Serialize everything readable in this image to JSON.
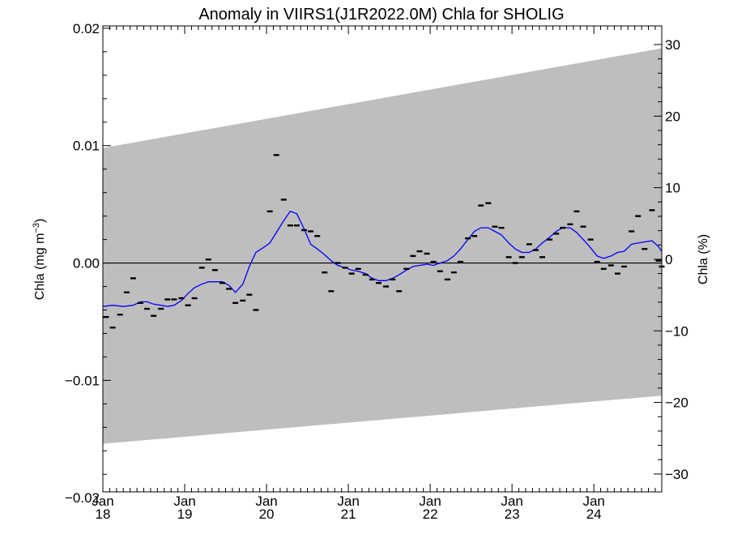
{
  "chart_data": {
    "type": "scatter",
    "title": "Anomaly in VIIRS1(J1R2022.0M) Chla for SHOLIG",
    "ylabel_left_main": "Chla (mg m",
    "ylabel_left_sup": "−3",
    "ylabel_left_end": ")",
    "ylabel_right": "Chla (%)",
    "xlim": [
      2018.0,
      2024.83
    ],
    "ylim": [
      -0.0195,
      0.0202
    ],
    "ylim_right": [
      -32.5,
      32.6
    ],
    "x_ticks": [
      {
        "x": 2018.0,
        "month": "Jan",
        "year": "18"
      },
      {
        "x": 2019.0,
        "month": "Jan",
        "year": "19"
      },
      {
        "x": 2020.0,
        "month": "Jan",
        "year": "20"
      },
      {
        "x": 2021.0,
        "month": "Jan",
        "year": "21"
      },
      {
        "x": 2022.0,
        "month": "Jan",
        "year": "22"
      },
      {
        "x": 2023.0,
        "month": "Jan",
        "year": "23"
      },
      {
        "x": 2024.0,
        "month": "Jan",
        "year": "24"
      }
    ],
    "y_ticks_left": [
      {
        "v": 0.02,
        "label": "0.02"
      },
      {
        "v": 0.01,
        "label": "0.01"
      },
      {
        "v": 0.0,
        "label": "0.00"
      },
      {
        "v": -0.01,
        "label": "−0.01"
      },
      {
        "v": -0.02,
        "label": "−0.02"
      }
    ],
    "y_ticks_right": [
      {
        "v": 30,
        "label": "30"
      },
      {
        "v": 20,
        "label": "20"
      },
      {
        "v": 10,
        "label": "10"
      },
      {
        "v": 0,
        "label": "0"
      },
      {
        "v": -10,
        "label": "−10"
      },
      {
        "v": -20,
        "label": "−20"
      },
      {
        "v": -30,
        "label": "−30"
      }
    ],
    "envelope": {
      "x": [
        2018.0,
        2024.83
      ],
      "upper": [
        0.0098,
        0.0183
      ],
      "lower": [
        -0.0154,
        -0.0113
      ],
      "color": "#bebebe"
    },
    "zero_line": 0.0,
    "monthly_anomaly": {
      "color": "#000000",
      "points": [
        [
          2018.04,
          -0.0046
        ],
        [
          2018.12,
          -0.0055
        ],
        [
          2018.21,
          -0.0044
        ],
        [
          2018.29,
          -0.0025
        ],
        [
          2018.37,
          -0.0013
        ],
        [
          2018.46,
          -0.0034
        ],
        [
          2018.54,
          -0.0039
        ],
        [
          2018.62,
          -0.0045
        ],
        [
          2018.71,
          -0.0039
        ],
        [
          2018.79,
          -0.0031
        ],
        [
          2018.87,
          -0.0031
        ],
        [
          2018.96,
          -0.003
        ],
        [
          2019.04,
          -0.0036
        ],
        [
          2019.12,
          -0.003
        ],
        [
          2019.21,
          -0.0004
        ],
        [
          2019.29,
          0.0003
        ],
        [
          2019.37,
          -0.0006
        ],
        [
          2019.46,
          -0.0017
        ],
        [
          2019.54,
          -0.0022
        ],
        [
          2019.62,
          -0.0034
        ],
        [
          2019.71,
          -0.0032
        ],
        [
          2019.79,
          -0.0027
        ],
        [
          2019.87,
          -0.004
        ],
        [
          2020.04,
          0.0044
        ],
        [
          2020.12,
          0.0092
        ],
        [
          2020.21,
          0.0054
        ],
        [
          2020.29,
          0.0032
        ],
        [
          2020.37,
          0.0032
        ],
        [
          2020.46,
          0.0028
        ],
        [
          2020.54,
          0.0027
        ],
        [
          2020.62,
          0.0023
        ],
        [
          2020.71,
          -0.0008
        ],
        [
          2020.79,
          -0.0024
        ],
        [
          2020.87,
          0.0
        ],
        [
          2020.96,
          -0.0004
        ],
        [
          2021.04,
          -0.0009
        ],
        [
          2021.12,
          -0.0005
        ],
        [
          2021.21,
          -0.001
        ],
        [
          2021.29,
          -0.0014
        ],
        [
          2021.37,
          -0.0017
        ],
        [
          2021.46,
          -0.002
        ],
        [
          2021.54,
          -0.0014
        ],
        [
          2021.62,
          -0.0024
        ],
        [
          2021.71,
          -0.0005
        ],
        [
          2021.79,
          0.0006
        ],
        [
          2021.87,
          0.001
        ],
        [
          2021.96,
          0.0008
        ],
        [
          2022.04,
          0.0001
        ],
        [
          2022.12,
          -0.0007
        ],
        [
          2022.21,
          -0.0014
        ],
        [
          2022.29,
          -0.0008
        ],
        [
          2022.37,
          0.0001
        ],
        [
          2022.46,
          0.0021
        ],
        [
          2022.54,
          0.0023
        ],
        [
          2022.62,
          0.0049
        ],
        [
          2022.71,
          0.0051
        ],
        [
          2022.79,
          0.0031
        ],
        [
          2022.87,
          0.003
        ],
        [
          2022.96,
          0.0005
        ],
        [
          2023.04,
          0.0
        ],
        [
          2023.12,
          0.0005
        ],
        [
          2023.21,
          0.0016
        ],
        [
          2023.29,
          0.0011
        ],
        [
          2023.37,
          0.0005
        ],
        [
          2023.46,
          0.002
        ],
        [
          2023.54,
          0.0025
        ],
        [
          2023.62,
          0.003
        ],
        [
          2023.71,
          0.0033
        ],
        [
          2023.79,
          0.0044
        ],
        [
          2023.87,
          0.0031
        ],
        [
          2023.96,
          0.002
        ],
        [
          2024.04,
          0.0001
        ],
        [
          2024.12,
          -0.0005
        ],
        [
          2024.21,
          -0.0002
        ],
        [
          2024.29,
          -0.0009
        ],
        [
          2024.37,
          -0.0003
        ],
        [
          2024.46,
          0.0027
        ],
        [
          2024.54,
          0.004
        ],
        [
          2024.62,
          0.0012
        ],
        [
          2024.71,
          0.0045
        ],
        [
          2024.79,
          0.0002
        ],
        [
          2024.83,
          -0.0003
        ]
      ]
    },
    "smoothed_anomaly": {
      "color": "#0000ff",
      "points": [
        [
          2018.0,
          -0.0037
        ],
        [
          2018.12,
          -0.0036
        ],
        [
          2018.25,
          -0.0037
        ],
        [
          2018.37,
          -0.0036
        ],
        [
          2018.46,
          -0.0033
        ],
        [
          2018.54,
          -0.0033
        ],
        [
          2018.62,
          -0.0035
        ],
        [
          2018.71,
          -0.0036
        ],
        [
          2018.79,
          -0.0037
        ],
        [
          2018.87,
          -0.0036
        ],
        [
          2018.96,
          -0.0032
        ],
        [
          2019.04,
          -0.0026
        ],
        [
          2019.12,
          -0.0021
        ],
        [
          2019.21,
          -0.0018
        ],
        [
          2019.29,
          -0.0016
        ],
        [
          2019.37,
          -0.0016
        ],
        [
          2019.46,
          -0.0016
        ],
        [
          2019.54,
          -0.0019
        ],
        [
          2019.62,
          -0.0025
        ],
        [
          2019.71,
          -0.0018
        ],
        [
          2019.79,
          -0.0003
        ],
        [
          2019.87,
          0.0009
        ],
        [
          2019.96,
          0.0013
        ],
        [
          2020.04,
          0.0017
        ],
        [
          2020.12,
          0.0026
        ],
        [
          2020.21,
          0.0036
        ],
        [
          2020.29,
          0.0044
        ],
        [
          2020.37,
          0.0042
        ],
        [
          2020.46,
          0.0029
        ],
        [
          2020.54,
          0.0016
        ],
        [
          2020.62,
          0.0012
        ],
        [
          2020.71,
          0.0007
        ],
        [
          2020.79,
          0.0002
        ],
        [
          2020.87,
          -0.0002
        ],
        [
          2020.96,
          -0.0004
        ],
        [
          2021.04,
          -0.0006
        ],
        [
          2021.12,
          -0.0007
        ],
        [
          2021.21,
          -0.0009
        ],
        [
          2021.29,
          -0.0013
        ],
        [
          2021.37,
          -0.0015
        ],
        [
          2021.46,
          -0.0015
        ],
        [
          2021.54,
          -0.0013
        ],
        [
          2021.62,
          -0.001
        ],
        [
          2021.71,
          -0.0006
        ],
        [
          2021.79,
          -0.0003
        ],
        [
          2021.87,
          -0.0002
        ],
        [
          2021.96,
          -0.0001
        ],
        [
          2022.04,
          -0.0002
        ],
        [
          2022.12,
          0.0
        ],
        [
          2022.21,
          0.0002
        ],
        [
          2022.29,
          0.0006
        ],
        [
          2022.37,
          0.0012
        ],
        [
          2022.46,
          0.002
        ],
        [
          2022.54,
          0.0027
        ],
        [
          2022.62,
          0.003
        ],
        [
          2022.71,
          0.003
        ],
        [
          2022.79,
          0.0027
        ],
        [
          2022.87,
          0.0024
        ],
        [
          2022.96,
          0.0017
        ],
        [
          2023.04,
          0.0012
        ],
        [
          2023.12,
          0.0009
        ],
        [
          2023.21,
          0.0009
        ],
        [
          2023.29,
          0.0012
        ],
        [
          2023.37,
          0.0017
        ],
        [
          2023.46,
          0.0022
        ],
        [
          2023.54,
          0.0027
        ],
        [
          2023.62,
          0.003
        ],
        [
          2023.71,
          0.003
        ],
        [
          2023.79,
          0.0026
        ],
        [
          2023.87,
          0.002
        ],
        [
          2023.96,
          0.0013
        ],
        [
          2024.04,
          0.0006
        ],
        [
          2024.12,
          0.0004
        ],
        [
          2024.21,
          0.0006
        ],
        [
          2024.29,
          0.0009
        ],
        [
          2024.37,
          0.001
        ],
        [
          2024.46,
          0.0016
        ],
        [
          2024.54,
          0.0017
        ],
        [
          2024.62,
          0.0018
        ],
        [
          2024.71,
          0.0019
        ],
        [
          2024.79,
          0.0014
        ],
        [
          2024.83,
          0.001
        ]
      ]
    }
  }
}
